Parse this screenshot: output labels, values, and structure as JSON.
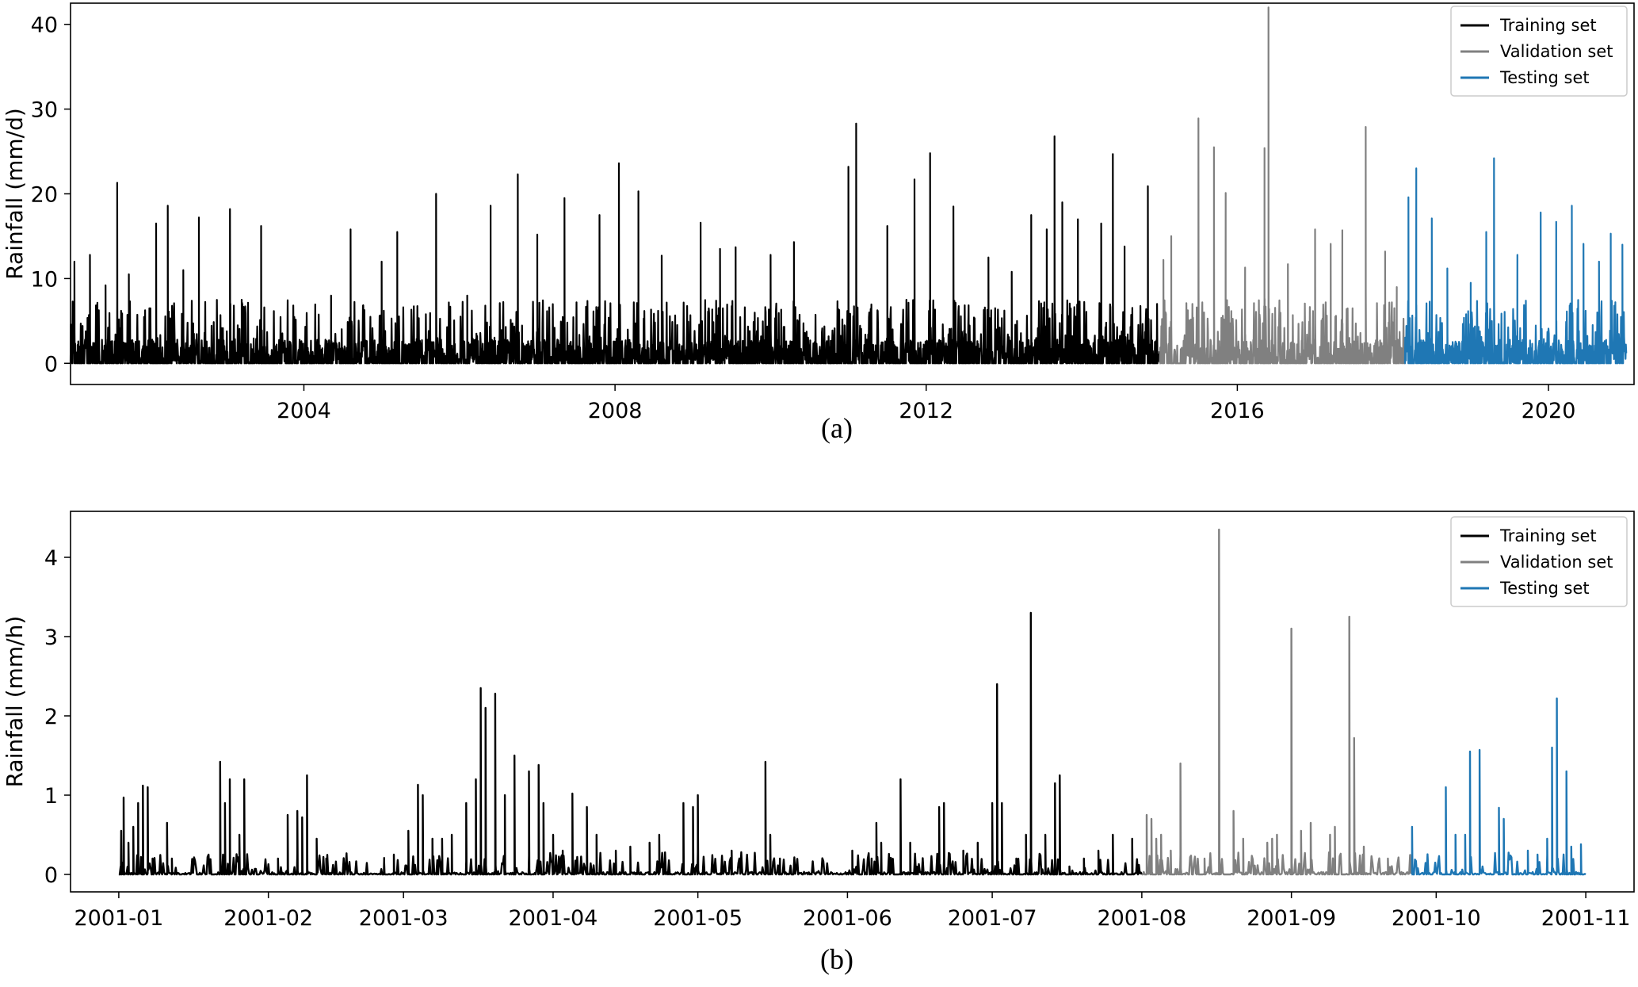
{
  "chart_data": [
    {
      "type": "line",
      "caption": "(a)",
      "ylabel": "Rainfall (mm/d)",
      "xlabel": "",
      "xlim": [
        2001,
        2021.1
      ],
      "ylim": [
        -2.5,
        42.5
      ],
      "xticks": [
        {
          "value": 2004,
          "label": "2004"
        },
        {
          "value": 2008,
          "label": "2008"
        },
        {
          "value": 2012,
          "label": "2012"
        },
        {
          "value": 2016,
          "label": "2016"
        },
        {
          "value": 2020,
          "label": "2020"
        }
      ],
      "yticks": [
        {
          "value": 0,
          "label": "0"
        },
        {
          "value": 10,
          "label": "10"
        },
        {
          "value": 20,
          "label": "20"
        },
        {
          "value": 30,
          "label": "30"
        },
        {
          "value": 40,
          "label": "40"
        }
      ],
      "legend_position": "top-right",
      "grid": false,
      "series": [
        {
          "name": "Training set",
          "color": "#000000",
          "x_range": [
            2001.0,
            2015.0
          ],
          "peaks": [
            [
              2001.05,
              12.0
            ],
            [
              2001.25,
              12.8
            ],
            [
              2001.45,
              9.2
            ],
            [
              2001.6,
              21.3
            ],
            [
              2001.75,
              10.5
            ],
            [
              2002.1,
              16.5
            ],
            [
              2002.25,
              18.6
            ],
            [
              2002.45,
              11.0
            ],
            [
              2002.65,
              17.2
            ],
            [
              2003.05,
              18.2
            ],
            [
              2003.2,
              7.5
            ],
            [
              2003.45,
              16.2
            ],
            [
              2004.35,
              8.0
            ],
            [
              2004.6,
              15.8
            ],
            [
              2005.0,
              12.0
            ],
            [
              2005.2,
              15.5
            ],
            [
              2005.7,
              20.0
            ],
            [
              2006.1,
              8.0
            ],
            [
              2006.4,
              18.6
            ],
            [
              2006.75,
              22.3
            ],
            [
              2007.0,
              15.2
            ],
            [
              2007.35,
              19.5
            ],
            [
              2007.8,
              17.5
            ],
            [
              2008.05,
              23.6
            ],
            [
              2008.3,
              20.3
            ],
            [
              2008.6,
              12.7
            ],
            [
              2009.1,
              16.6
            ],
            [
              2009.35,
              13.5
            ],
            [
              2009.55,
              13.7
            ],
            [
              2010.0,
              12.8
            ],
            [
              2010.3,
              14.3
            ],
            [
              2011.0,
              23.2
            ],
            [
              2011.1,
              28.3
            ],
            [
              2011.5,
              16.2
            ],
            [
              2011.85,
              21.7
            ],
            [
              2012.05,
              24.8
            ],
            [
              2012.35,
              18.5
            ],
            [
              2012.8,
              12.5
            ],
            [
              2013.1,
              10.8
            ],
            [
              2013.35,
              17.5
            ],
            [
              2013.55,
              15.8
            ],
            [
              2013.65,
              26.8
            ],
            [
              2013.75,
              19.0
            ],
            [
              2013.95,
              17.0
            ],
            [
              2014.25,
              16.5
            ],
            [
              2014.4,
              24.7
            ],
            [
              2014.55,
              13.8
            ],
            [
              2014.85,
              20.9
            ]
          ]
        },
        {
          "name": "Validation set",
          "color": "#808080",
          "x_range": [
            2015.0,
            2018.15
          ],
          "peaks": [
            [
              2015.05,
              12.2
            ],
            [
              2015.15,
              15.0
            ],
            [
              2015.5,
              28.9
            ],
            [
              2015.7,
              25.5
            ],
            [
              2015.85,
              20.1
            ],
            [
              2016.1,
              11.3
            ],
            [
              2016.35,
              25.4
            ],
            [
              2016.4,
              42.0
            ],
            [
              2016.65,
              11.7
            ],
            [
              2017.0,
              15.8
            ],
            [
              2017.2,
              14.1
            ],
            [
              2017.35,
              15.7
            ],
            [
              2017.65,
              27.9
            ],
            [
              2017.9,
              13.2
            ],
            [
              2018.05,
              9.0
            ]
          ]
        },
        {
          "name": "Testing set",
          "color": "#1f77b4",
          "x_range": [
            2018.15,
            2021.0
          ],
          "peaks": [
            [
              2018.2,
              19.6
            ],
            [
              2018.3,
              23.0
            ],
            [
              2018.5,
              17.1
            ],
            [
              2018.7,
              11.2
            ],
            [
              2019.0,
              9.5
            ],
            [
              2019.2,
              15.5
            ],
            [
              2019.3,
              24.2
            ],
            [
              2019.6,
              12.8
            ],
            [
              2019.9,
              17.8
            ],
            [
              2020.1,
              16.7
            ],
            [
              2020.3,
              18.6
            ],
            [
              2020.45,
              14.1
            ],
            [
              2020.65,
              12.0
            ],
            [
              2020.8,
              15.3
            ],
            [
              2020.95,
              14.0
            ]
          ]
        }
      ]
    },
    {
      "type": "line",
      "caption": "(b)",
      "ylabel": "Rainfall (mm/h)",
      "xlabel": "",
      "xlim": [
        -10,
        314
      ],
      "ylim": [
        -0.22,
        4.58
      ],
      "xticks": [
        {
          "value": 0,
          "label": "2001-01"
        },
        {
          "value": 31,
          "label": "2001-02"
        },
        {
          "value": 59,
          "label": "2001-03"
        },
        {
          "value": 90,
          "label": "2001-04"
        },
        {
          "value": 120,
          "label": "2001-05"
        },
        {
          "value": 151,
          "label": "2001-06"
        },
        {
          "value": 181,
          "label": "2001-07"
        },
        {
          "value": 212,
          "label": "2001-08"
        },
        {
          "value": 243,
          "label": "2001-09"
        },
        {
          "value": 273,
          "label": "2001-10"
        },
        {
          "value": 304,
          "label": "2001-11"
        }
      ],
      "yticks": [
        {
          "value": 0,
          "label": "0"
        },
        {
          "value": 1,
          "label": "1"
        },
        {
          "value": 2,
          "label": "2"
        },
        {
          "value": 3,
          "label": "3"
        },
        {
          "value": 4,
          "label": "4"
        }
      ],
      "legend_position": "top-right",
      "grid": false,
      "series": [
        {
          "name": "Training set",
          "color": "#000000",
          "x_range": [
            0,
            212
          ],
          "peaks": [
            [
              0.5,
              0.55
            ],
            [
              1,
              0.97
            ],
            [
              2,
              0.4
            ],
            [
              3,
              0.6
            ],
            [
              4,
              0.9
            ],
            [
              5,
              1.12
            ],
            [
              6,
              1.1
            ],
            [
              7,
              0.2
            ],
            [
              10,
              0.65
            ],
            [
              11,
              0.2
            ],
            [
              21,
              1.42
            ],
            [
              22,
              0.9
            ],
            [
              23,
              1.2
            ],
            [
              25,
              0.5
            ],
            [
              26,
              1.2
            ],
            [
              33,
              0.2
            ],
            [
              35,
              0.75
            ],
            [
              37,
              0.8
            ],
            [
              38,
              0.72
            ],
            [
              39,
              1.25
            ],
            [
              41,
              0.45
            ],
            [
              43,
              0.2
            ],
            [
              55,
              0.15
            ],
            [
              57,
              0.25
            ],
            [
              60,
              0.55
            ],
            [
              62,
              1.13
            ],
            [
              63,
              1.0
            ],
            [
              65,
              0.45
            ],
            [
              67,
              0.45
            ],
            [
              69,
              0.5
            ],
            [
              72,
              0.9
            ],
            [
              74,
              1.2
            ],
            [
              75,
              2.35
            ],
            [
              76,
              2.1
            ],
            [
              78,
              2.28
            ],
            [
              80,
              1.0
            ],
            [
              82,
              1.5
            ],
            [
              85,
              1.3
            ],
            [
              87,
              1.38
            ],
            [
              88,
              0.9
            ],
            [
              90,
              0.5
            ],
            [
              92,
              0.3
            ],
            [
              94,
              1.02
            ],
            [
              97,
              0.85
            ],
            [
              99,
              0.5
            ],
            [
              103,
              0.3
            ],
            [
              106,
              0.35
            ],
            [
              110,
              0.4
            ],
            [
              112,
              0.5
            ],
            [
              117,
              0.9
            ],
            [
              119,
              0.85
            ],
            [
              120,
              1.0
            ],
            [
              127,
              0.3
            ],
            [
              134,
              1.42
            ],
            [
              135,
              0.5
            ],
            [
              137,
              0.2
            ],
            [
              152,
              0.3
            ],
            [
              156,
              0.2
            ],
            [
              157,
              0.65
            ],
            [
              158,
              0.4
            ],
            [
              162,
              1.2
            ],
            [
              164,
              0.4
            ],
            [
              170,
              0.85
            ],
            [
              171,
              0.9
            ],
            [
              175,
              0.3
            ],
            [
              178,
              0.4
            ],
            [
              181,
              0.9
            ],
            [
              182,
              2.4
            ],
            [
              183,
              0.9
            ],
            [
              186,
              0.2
            ],
            [
              188,
              0.5
            ],
            [
              189,
              3.3
            ],
            [
              192,
              0.5
            ],
            [
              194,
              1.15
            ],
            [
              195,
              1.25
            ],
            [
              197,
              0.1
            ],
            [
              200,
              0.2
            ],
            [
              203,
              0.3
            ],
            [
              206,
              0.5
            ],
            [
              210,
              0.45
            ]
          ]
        },
        {
          "name": "Validation set",
          "color": "#808080",
          "x_range": [
            212,
            268
          ],
          "peaks": [
            [
              213,
              0.75
            ],
            [
              214,
              0.7
            ],
            [
              215,
              0.45
            ],
            [
              216,
              0.5
            ],
            [
              218,
              0.3
            ],
            [
              220,
              1.4
            ],
            [
              225,
              0.2
            ],
            [
              228,
              4.35
            ],
            [
              231,
              0.8
            ],
            [
              233,
              0.45
            ],
            [
              238,
              0.4
            ],
            [
              239,
              0.45
            ],
            [
              240,
              0.5
            ],
            [
              243,
              3.1
            ],
            [
              245,
              0.55
            ],
            [
              247,
              0.65
            ],
            [
              251,
              0.5
            ],
            [
              252,
              0.6
            ],
            [
              255,
              3.25
            ],
            [
              256,
              1.72
            ],
            [
              258,
              0.35
            ],
            [
              263,
              0.2
            ]
          ]
        },
        {
          "name": "Testing set",
          "color": "#1f77b4",
          "x_range": [
            268,
            304
          ],
          "peaks": [
            [
              268,
              0.6
            ],
            [
              275,
              1.1
            ],
            [
              277,
              0.5
            ],
            [
              279,
              0.5
            ],
            [
              280,
              1.55
            ],
            [
              282,
              1.57
            ],
            [
              286,
              0.84
            ],
            [
              287,
              0.7
            ],
            [
              292,
              0.3
            ],
            [
              294,
              0.25
            ],
            [
              296,
              0.45
            ],
            [
              297,
              1.6
            ],
            [
              298,
              2.22
            ],
            [
              300,
              1.3
            ],
            [
              301,
              0.35
            ],
            [
              303,
              0.38
            ]
          ]
        }
      ]
    }
  ]
}
